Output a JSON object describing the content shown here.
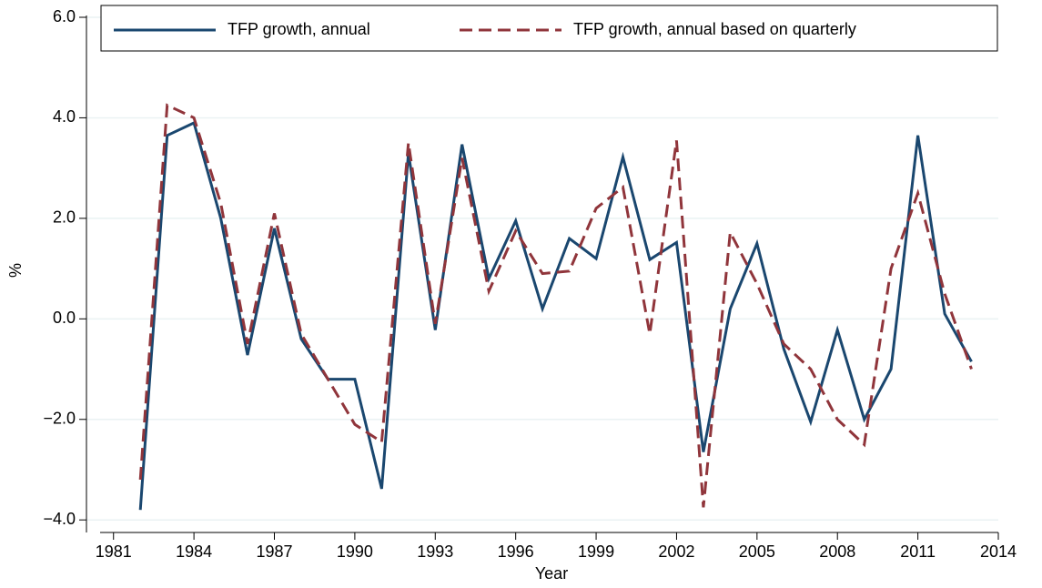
{
  "chart_data": {
    "type": "line",
    "x_label": "Year",
    "y_label": "%",
    "x": [
      1982,
      1983,
      1984,
      1985,
      1986,
      1987,
      1988,
      1989,
      1990,
      1991,
      1992,
      1993,
      1994,
      1995,
      1996,
      1997,
      1998,
      1999,
      2000,
      2001,
      2002,
      2003,
      2004,
      2005,
      2006,
      2007,
      2008,
      2009,
      2010,
      2011,
      2012,
      2013
    ],
    "series": [
      {
        "name": "TFP growth, annual",
        "color": "#1a476f",
        "dash": false,
        "values": [
          -3.8,
          3.65,
          3.9,
          2.0,
          -0.72,
          1.8,
          -0.4,
          -1.2,
          -1.2,
          -3.38,
          3.3,
          -0.22,
          3.47,
          0.8,
          1.95,
          0.2,
          1.6,
          1.2,
          3.22,
          1.18,
          1.52,
          -2.65,
          0.2,
          1.5,
          -0.6,
          -2.05,
          -0.22,
          -2.0,
          -1.0,
          3.65,
          0.1,
          -0.85
        ]
      },
      {
        "name": "TFP growth, annual based on quarterly",
        "color": "#90353b",
        "dash": true,
        "values": [
          -3.2,
          4.25,
          4.0,
          2.3,
          -0.5,
          2.1,
          -0.3,
          -1.2,
          -2.1,
          -2.45,
          3.5,
          -0.1,
          3.2,
          0.55,
          1.75,
          0.9,
          0.95,
          2.2,
          2.62,
          -0.3,
          3.55,
          -3.75,
          1.72,
          0.7,
          -0.5,
          -1.0,
          -2.0,
          -2.5,
          1.0,
          2.5,
          0.5,
          -1.0
        ]
      }
    ],
    "xlim": [
      1980.5,
      2014
    ],
    "xticks": [
      1981,
      1984,
      1987,
      1990,
      1993,
      1996,
      1999,
      2002,
      2005,
      2008,
      2011,
      2014
    ],
    "ylim": [
      -4.25,
      6
    ],
    "yticks": [
      {
        "value": -4,
        "label": "−4.0"
      },
      {
        "value": -2,
        "label": "−2.0"
      },
      {
        "value": 0,
        "label": "0.0"
      },
      {
        "value": 2,
        "label": "2.0"
      },
      {
        "value": 4,
        "label": "4.0"
      },
      {
        "value": 6,
        "label": "6.0"
      }
    ],
    "grid": true,
    "legend": "top"
  }
}
